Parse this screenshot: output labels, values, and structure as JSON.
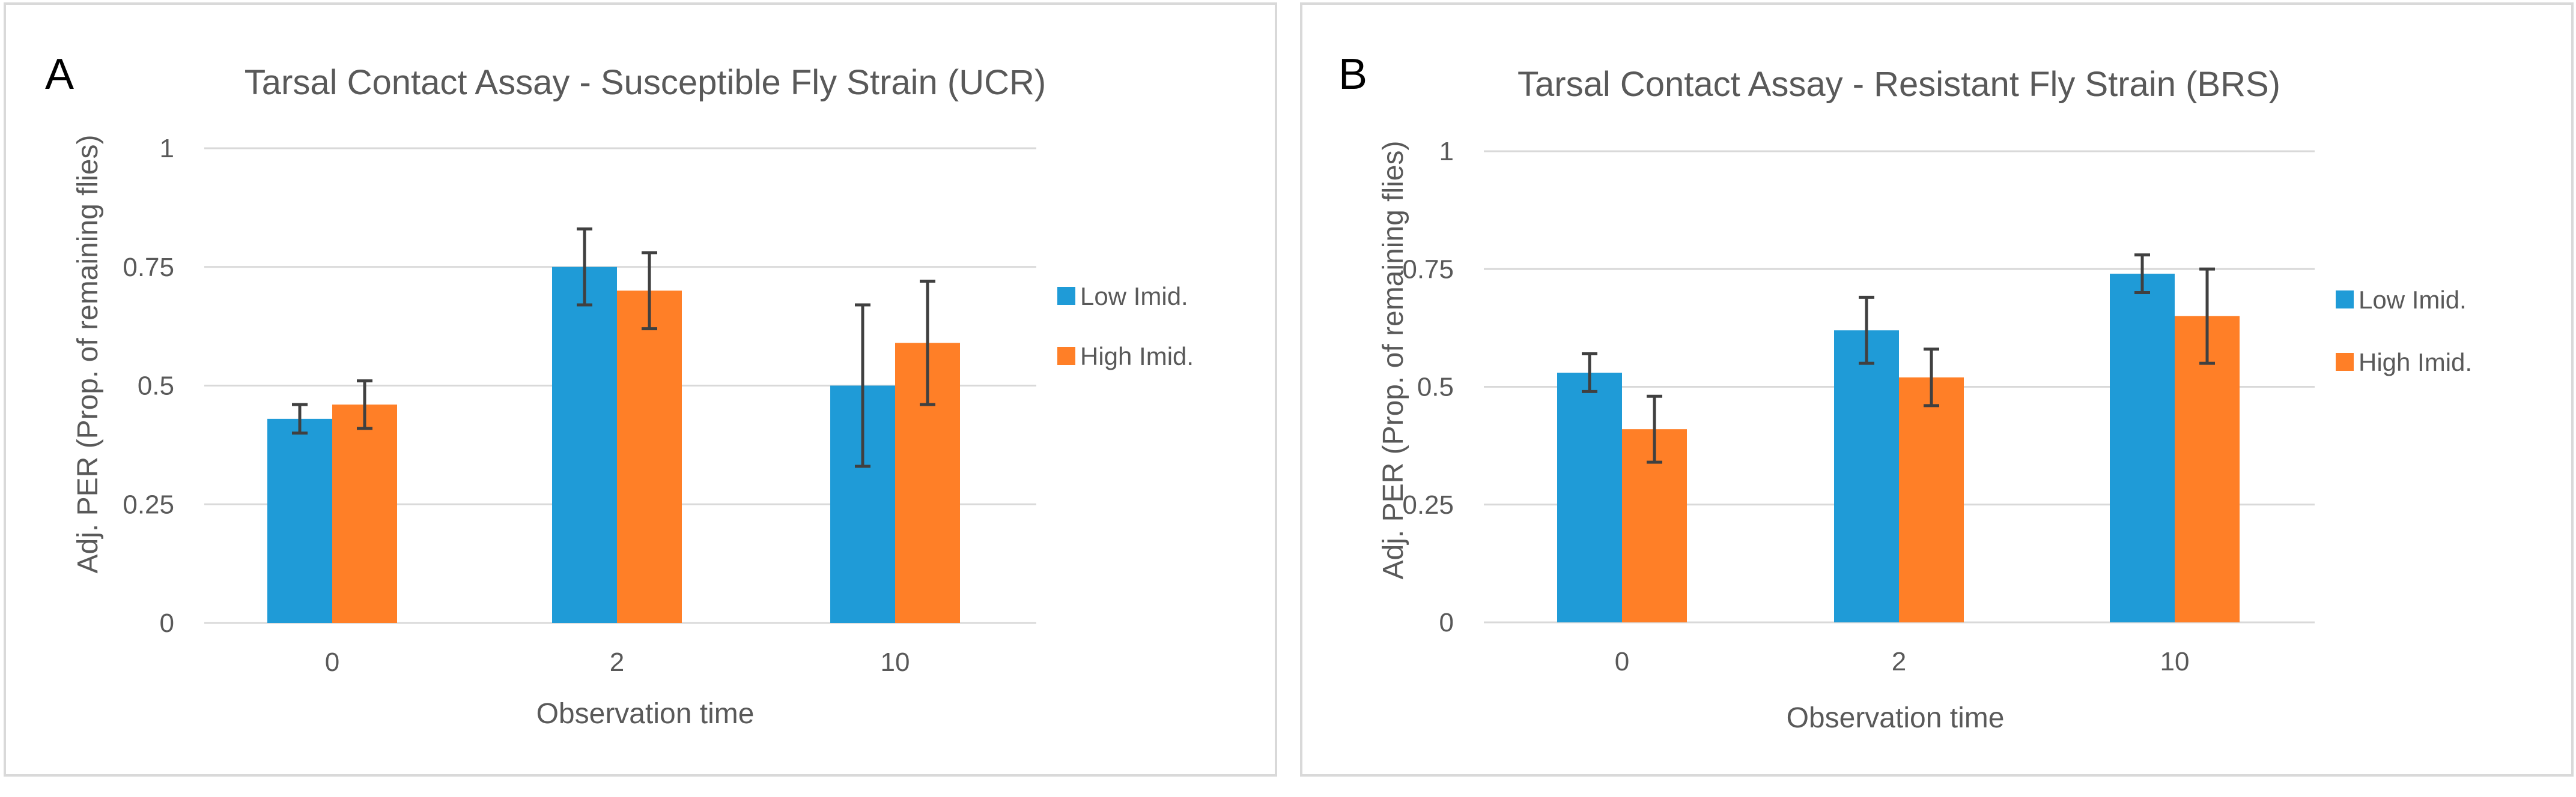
{
  "colors": {
    "low": "#1f9bd7",
    "high": "#ff7f27"
  },
  "chart_data": [
    {
      "panel": "A",
      "type": "bar",
      "title": "Tarsal Contact Assay - Susceptible Fly Strain (UCR)",
      "xlabel": "Observation time",
      "ylabel": "Adj. PER (Prop. of remaining flies)",
      "categories": [
        "0",
        "2",
        "10"
      ],
      "ylim": [
        0,
        1
      ],
      "yticks": [
        0,
        0.25,
        0.5,
        0.75,
        1
      ],
      "ytick_labels": [
        "0",
        "0.25",
        "0.5",
        "0.75",
        "1"
      ],
      "grid": true,
      "legend_position": "right",
      "series": [
        {
          "name": "Low Imid.",
          "values": [
            0.43,
            0.75,
            0.5
          ],
          "error": [
            0.03,
            0.08,
            0.17
          ]
        },
        {
          "name": "High Imid.",
          "values": [
            0.46,
            0.7,
            0.59
          ],
          "error": [
            0.05,
            0.08,
            0.13
          ]
        }
      ]
    },
    {
      "panel": "B",
      "type": "bar",
      "title": "Tarsal Contact Assay - Resistant Fly Strain (BRS)",
      "xlabel": "Observation time",
      "ylabel": "Adj. PER (Prop. of remaining flies)",
      "categories": [
        "0",
        "2",
        "10"
      ],
      "ylim": [
        0,
        1
      ],
      "yticks": [
        0,
        0.25,
        0.5,
        0.75,
        1
      ],
      "ytick_labels": [
        "0",
        "0.25",
        "0.5",
        "0.75",
        "1"
      ],
      "grid": true,
      "legend_position": "right",
      "series": [
        {
          "name": "Low Imid.",
          "values": [
            0.53,
            0.62,
            0.74
          ],
          "error": [
            0.04,
            0.07,
            0.04
          ]
        },
        {
          "name": "High Imid.",
          "values": [
            0.41,
            0.52,
            0.65
          ],
          "error": [
            0.07,
            0.06,
            0.1
          ]
        }
      ]
    }
  ]
}
